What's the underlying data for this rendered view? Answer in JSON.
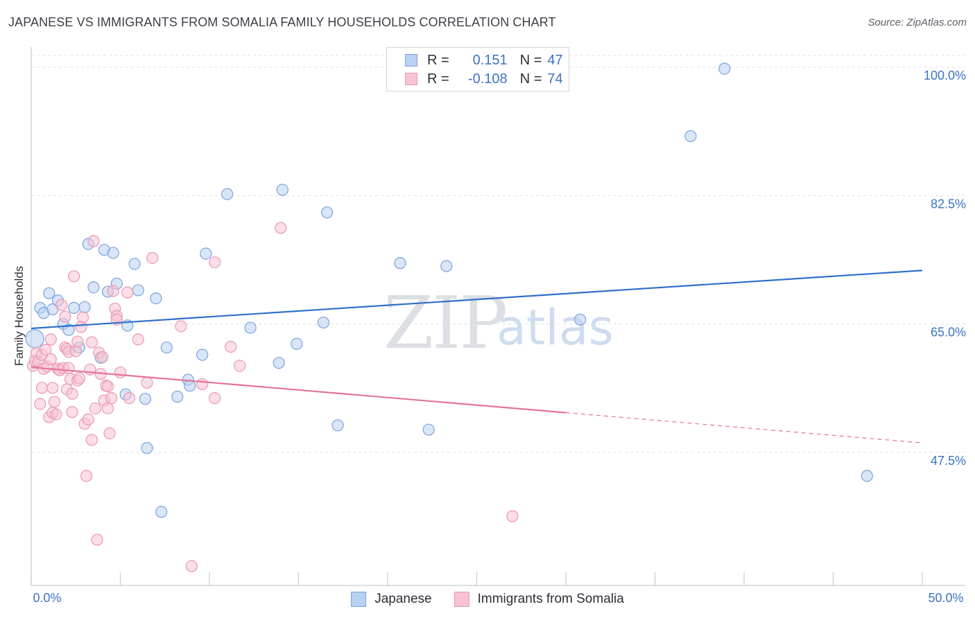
{
  "title": "JAPANESE VS IMMIGRANTS FROM SOMALIA FAMILY HOUSEHOLDS CORRELATION CHART",
  "source": "Source: ZipAtlas.com",
  "watermark": {
    "zip": "ZIP",
    "atlas": "atlas"
  },
  "legend": {
    "japanese": {
      "r_label": "R =",
      "r_value": "0.151",
      "n_label": "N =",
      "n_value": "47"
    },
    "somalia": {
      "r_label": "R =",
      "r_value": "-0.108",
      "n_label": "N =",
      "n_value": "74"
    }
  },
  "colors": {
    "japanese_fill": "#b9d1f2",
    "japanese_stroke": "#7aa3dc",
    "japanese_line": "#2f6fc9",
    "somalia_fill": "#f7c3d4",
    "somalia_stroke": "#e898b3",
    "somalia_line": "#e4739a",
    "tick_label": "#3b73c4",
    "grid": "#dde1e6"
  },
  "chart_data": {
    "type": "scatter",
    "title": "JAPANESE VS IMMIGRANTS FROM SOMALIA FAMILY HOUSEHOLDS CORRELATION CHART",
    "xlabel": "",
    "ylabel": "Family Households",
    "xlim": [
      0,
      50
    ],
    "ylim": [
      32.0,
      101.5
    ],
    "x_tick_labels": [
      "0.0%",
      "50.0%"
    ],
    "y_ticks": [
      47.5,
      65.0,
      82.5,
      100.0
    ],
    "y_tick_labels": [
      "47.5%",
      "65.0%",
      "82.5%",
      "100.0%"
    ],
    "legend_position": "top-center",
    "series": [
      {
        "name": "Japanese",
        "r": 0.151,
        "n": 47,
        "trend": {
          "x": [
            0,
            50
          ],
          "y": [
            64.4,
            72.3
          ],
          "dashed_from_x": null
        },
        "points": [
          [
            0.2,
            63.0
          ],
          [
            0.5,
            67.2
          ],
          [
            0.7,
            66.5
          ],
          [
            1.0,
            69.2
          ],
          [
            1.2,
            67.0
          ],
          [
            1.5,
            68.2
          ],
          [
            1.8,
            65.0
          ],
          [
            2.1,
            64.2
          ],
          [
            2.4,
            67.2
          ],
          [
            2.7,
            61.8
          ],
          [
            3.0,
            67.3
          ],
          [
            3.2,
            75.9
          ],
          [
            3.5,
            70.0
          ],
          [
            3.9,
            60.4
          ],
          [
            4.1,
            75.1
          ],
          [
            4.3,
            69.4
          ],
          [
            4.6,
            74.7
          ],
          [
            4.8,
            70.5
          ],
          [
            5.3,
            55.4
          ],
          [
            5.4,
            64.8
          ],
          [
            5.8,
            73.2
          ],
          [
            6.0,
            69.6
          ],
          [
            6.4,
            54.8
          ],
          [
            6.5,
            48.1
          ],
          [
            7.0,
            68.5
          ],
          [
            7.3,
            39.4
          ],
          [
            7.6,
            61.8
          ],
          [
            8.2,
            55.1
          ],
          [
            8.8,
            57.4
          ],
          [
            8.9,
            56.6
          ],
          [
            9.6,
            60.8
          ],
          [
            9.8,
            74.6
          ],
          [
            11.0,
            82.7
          ],
          [
            12.3,
            64.5
          ],
          [
            13.9,
            59.7
          ],
          [
            14.1,
            83.3
          ],
          [
            14.9,
            62.3
          ],
          [
            16.4,
            65.2
          ],
          [
            16.6,
            80.2
          ],
          [
            17.2,
            51.2
          ],
          [
            20.7,
            73.3
          ],
          [
            22.3,
            50.6
          ],
          [
            23.3,
            72.9
          ],
          [
            30.8,
            65.6
          ],
          [
            37.0,
            90.6
          ],
          [
            38.9,
            99.8
          ],
          [
            46.9,
            44.3
          ]
        ]
      },
      {
        "name": "Immigrants from Somalia",
        "r": -0.108,
        "n": 74,
        "trend": {
          "x": [
            0,
            50
          ],
          "y": [
            59.1,
            48.8
          ],
          "dashed_from_x": 30.0
        },
        "points": [
          [
            0.1,
            59.3
          ],
          [
            0.2,
            60.0
          ],
          [
            0.3,
            61.0
          ],
          [
            0.4,
            59.9
          ],
          [
            0.5,
            54.1
          ],
          [
            0.6,
            56.3
          ],
          [
            0.6,
            60.8
          ],
          [
            0.7,
            58.9
          ],
          [
            0.8,
            61.5
          ],
          [
            0.9,
            59.2
          ],
          [
            1.0,
            52.3
          ],
          [
            1.1,
            60.2
          ],
          [
            1.1,
            62.9
          ],
          [
            1.2,
            56.3
          ],
          [
            1.2,
            52.9
          ],
          [
            1.3,
            54.4
          ],
          [
            1.4,
            52.7
          ],
          [
            1.5,
            58.9
          ],
          [
            1.6,
            58.7
          ],
          [
            1.7,
            67.6
          ],
          [
            1.8,
            59.0
          ],
          [
            1.9,
            66.0
          ],
          [
            1.9,
            61.8
          ],
          [
            2.0,
            56.1
          ],
          [
            2.0,
            61.6
          ],
          [
            2.1,
            59.0
          ],
          [
            2.1,
            61.2
          ],
          [
            2.2,
            57.5
          ],
          [
            2.3,
            55.5
          ],
          [
            2.3,
            53.0
          ],
          [
            2.4,
            71.5
          ],
          [
            2.5,
            61.3
          ],
          [
            2.6,
            62.6
          ],
          [
            2.6,
            57.3
          ],
          [
            2.7,
            57.6
          ],
          [
            2.8,
            64.6
          ],
          [
            2.9,
            65.9
          ],
          [
            3.0,
            51.4
          ],
          [
            3.1,
            44.3
          ],
          [
            3.2,
            52.0
          ],
          [
            3.3,
            58.8
          ],
          [
            3.4,
            62.5
          ],
          [
            3.4,
            49.2
          ],
          [
            3.5,
            76.3
          ],
          [
            3.6,
            53.5
          ],
          [
            3.7,
            35.6
          ],
          [
            3.8,
            61.1
          ],
          [
            3.9,
            58.2
          ],
          [
            4.0,
            60.5
          ],
          [
            4.1,
            54.6
          ],
          [
            4.2,
            56.6
          ],
          [
            4.3,
            56.5
          ],
          [
            4.3,
            53.5
          ],
          [
            4.4,
            50.1
          ],
          [
            4.5,
            54.9
          ],
          [
            4.6,
            69.5
          ],
          [
            4.7,
            67.1
          ],
          [
            4.8,
            66.1
          ],
          [
            4.8,
            65.6
          ],
          [
            5.0,
            58.4
          ],
          [
            5.4,
            69.3
          ],
          [
            5.5,
            54.9
          ],
          [
            6.0,
            62.9
          ],
          [
            6.5,
            57.0
          ],
          [
            6.8,
            74.0
          ],
          [
            8.4,
            64.7
          ],
          [
            9.0,
            32.0
          ],
          [
            9.6,
            56.8
          ],
          [
            10.3,
            73.4
          ],
          [
            10.3,
            54.9
          ],
          [
            11.2,
            61.9
          ],
          [
            11.7,
            59.3
          ],
          [
            14.0,
            78.1
          ],
          [
            27.0,
            38.8
          ]
        ]
      }
    ]
  },
  "bottom_legend": [
    "Japanese",
    "Immigrants from Somalia"
  ]
}
